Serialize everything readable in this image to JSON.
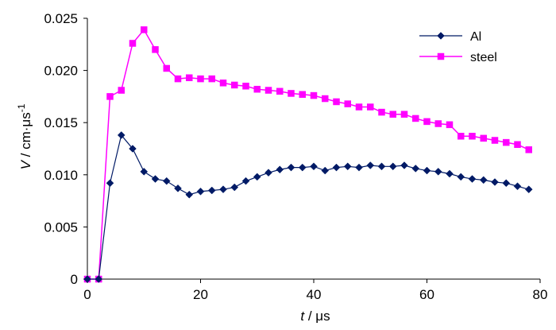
{
  "chart_data": {
    "type": "line",
    "xlabel_var": "t",
    "xlabel_unit": " / μs",
    "ylabel_var": "V",
    "ylabel_unit": " / cm·μs",
    "ylabel_exp": "-1",
    "xlim": [
      0,
      80
    ],
    "ylim": [
      0,
      0.025
    ],
    "xticks": [
      0,
      20,
      40,
      60,
      80
    ],
    "yticks": [
      0,
      0.005,
      0.01,
      0.015,
      0.02,
      0.025
    ],
    "xtick_labels": [
      "0",
      "20",
      "40",
      "60",
      "80"
    ],
    "ytick_labels": [
      "0",
      "0.005",
      "0.010",
      "0.015",
      "0.020",
      "0.025"
    ],
    "grid": false,
    "legend_position": "top-right",
    "series": [
      {
        "name": "Al",
        "color": "#001a66",
        "marker": "diamond",
        "x": [
          0,
          2,
          4,
          6,
          8,
          10,
          12,
          14,
          16,
          18,
          20,
          22,
          24,
          26,
          28,
          30,
          32,
          34,
          36,
          38,
          40,
          42,
          44,
          46,
          48,
          50,
          52,
          54,
          56,
          58,
          60,
          62,
          64,
          66,
          68,
          70,
          72,
          74,
          76,
          78
        ],
        "y": [
          0,
          0,
          0.0092,
          0.0138,
          0.0125,
          0.0103,
          0.0096,
          0.0094,
          0.0087,
          0.0081,
          0.0084,
          0.0085,
          0.0086,
          0.0088,
          0.0094,
          0.0098,
          0.0102,
          0.0105,
          0.0107,
          0.0107,
          0.0108,
          0.0104,
          0.0107,
          0.0108,
          0.0107,
          0.0109,
          0.0108,
          0.0108,
          0.0109,
          0.0106,
          0.0104,
          0.0103,
          0.0101,
          0.0098,
          0.0096,
          0.0095,
          0.0093,
          0.0092,
          0.0089,
          0.0086
        ]
      },
      {
        "name": "steel",
        "color": "#ff00ff",
        "marker": "square",
        "x": [
          0,
          2,
          4,
          6,
          8,
          10,
          12,
          14,
          16,
          18,
          20,
          22,
          24,
          26,
          28,
          30,
          32,
          34,
          36,
          38,
          40,
          42,
          44,
          46,
          48,
          50,
          52,
          54,
          56,
          58,
          60,
          62,
          64,
          66,
          68,
          70,
          72,
          74,
          76,
          78
        ],
        "y": [
          0,
          0,
          0.0175,
          0.0181,
          0.0226,
          0.0239,
          0.022,
          0.0202,
          0.0192,
          0.0193,
          0.0192,
          0.0192,
          0.0188,
          0.0186,
          0.0185,
          0.0182,
          0.0181,
          0.018,
          0.0178,
          0.0177,
          0.0176,
          0.0173,
          0.017,
          0.0168,
          0.0165,
          0.0165,
          0.016,
          0.0158,
          0.0158,
          0.0154,
          0.0151,
          0.0149,
          0.0148,
          0.0137,
          0.0137,
          0.0135,
          0.0133,
          0.0131,
          0.0129,
          0.0124
        ]
      }
    ]
  }
}
